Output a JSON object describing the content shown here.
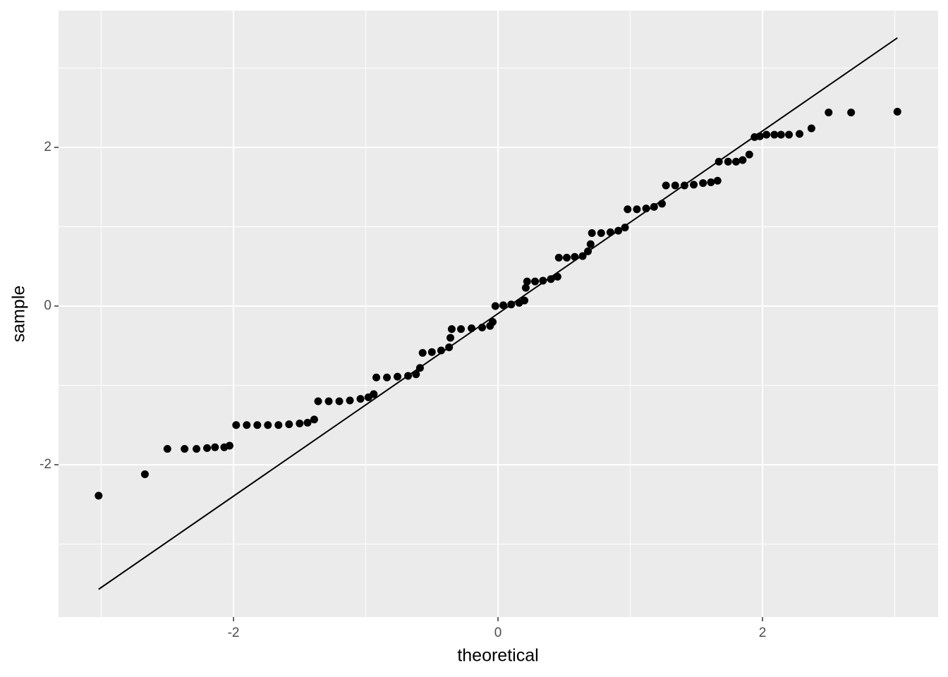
{
  "chart_data": {
    "type": "scatter",
    "x_label": "theoretical",
    "y_label": "sample",
    "x": [
      -3.02,
      -2.67,
      -2.5,
      -2.37,
      -2.28,
      -2.2,
      -2.14,
      -2.07,
      -2.03,
      -1.98,
      -1.9,
      -1.82,
      -1.74,
      -1.66,
      -1.58,
      -1.5,
      -1.44,
      -1.39,
      -1.36,
      -1.28,
      -1.2,
      -1.12,
      -1.04,
      -0.98,
      -0.94,
      -0.92,
      -0.84,
      -0.76,
      -0.68,
      -0.62,
      -0.59,
      -0.57,
      -0.5,
      -0.43,
      -0.37,
      -0.36,
      -0.35,
      -0.28,
      -0.2,
      -0.12,
      -0.06,
      -0.04,
      -0.02,
      0.04,
      0.1,
      0.16,
      0.2,
      0.21,
      0.22,
      0.28,
      0.34,
      0.4,
      0.45,
      0.46,
      0.52,
      0.58,
      0.64,
      0.68,
      0.7,
      0.71,
      0.78,
      0.85,
      0.91,
      0.96,
      0.98,
      1.05,
      1.12,
      1.18,
      1.24,
      1.27,
      1.34,
      1.41,
      1.48,
      1.55,
      1.61,
      1.66,
      1.67,
      1.74,
      1.8,
      1.85,
      1.9,
      1.94,
      1.98,
      2.03,
      2.09,
      2.14,
      2.2,
      2.28,
      2.37,
      2.5,
      2.67,
      3.02
    ],
    "y": [
      -2.39,
      -2.12,
      -1.8,
      -1.8,
      -1.8,
      -1.79,
      -1.78,
      -1.78,
      -1.76,
      -1.5,
      -1.5,
      -1.5,
      -1.5,
      -1.5,
      -1.49,
      -1.48,
      -1.47,
      -1.43,
      -1.2,
      -1.2,
      -1.2,
      -1.19,
      -1.17,
      -1.15,
      -1.11,
      -0.9,
      -0.9,
      -0.89,
      -0.88,
      -0.86,
      -0.78,
      -0.59,
      -0.58,
      -0.56,
      -0.52,
      -0.4,
      -0.29,
      -0.29,
      -0.28,
      -0.27,
      -0.25,
      -0.2,
      0,
      0.01,
      0.02,
      0.04,
      0.07,
      0.23,
      0.31,
      0.31,
      0.32,
      0.34,
      0.37,
      0.61,
      0.61,
      0.62,
      0.63,
      0.69,
      0.78,
      0.92,
      0.92,
      0.93,
      0.95,
      0.99,
      1.22,
      1.22,
      1.23,
      1.25,
      1.29,
      1.52,
      1.52,
      1.52,
      1.53,
      1.55,
      1.56,
      1.58,
      1.82,
      1.82,
      1.82,
      1.84,
      1.91,
      2.13,
      2.14,
      2.16,
      2.16,
      2.16,
      2.16,
      2.17,
      2.24,
      2.44,
      2.44,
      2.45
    ],
    "color": "#000000",
    "reference_line": {
      "x": [
        -3.02,
        3.02
      ],
      "y": [
        -3.57,
        3.38
      ],
      "color": "#000000"
    },
    "xlim": [
      -3.323,
      3.328
    ],
    "ylim": [
      -3.92,
      3.724
    ],
    "xticks": [
      -2,
      0,
      2
    ],
    "yticks": [
      -2,
      0,
      2
    ],
    "grid": true
  }
}
